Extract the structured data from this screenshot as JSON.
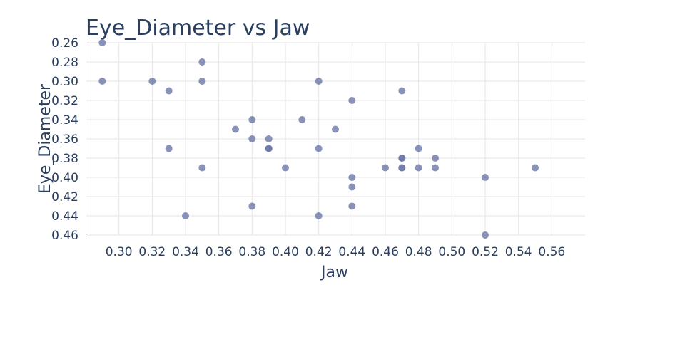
{
  "chart_data": {
    "type": "scatter",
    "title": "Eye_Diameter vs Jaw",
    "xlabel": "Jaw",
    "ylabel": "Eye_Diameter",
    "xlim": [
      0.28,
      0.58
    ],
    "ylim": [
      0.26,
      0.46
    ],
    "y_reversed": true,
    "grid": true,
    "legend": "none",
    "x_ticks": [
      "0.30",
      "0.32",
      "0.34",
      "0.36",
      "0.38",
      "0.40",
      "0.42",
      "0.44",
      "0.46",
      "0.48",
      "0.50",
      "0.52",
      "0.54",
      "0.56"
    ],
    "y_ticks": [
      "0.26",
      "0.28",
      "0.30",
      "0.32",
      "0.34",
      "0.36",
      "0.38",
      "0.40",
      "0.42",
      "0.44",
      "0.46"
    ],
    "marker_color": "#6b77a6",
    "marker_opacity": 0.8,
    "points": [
      {
        "x": 0.29,
        "y": 0.26
      },
      {
        "x": 0.29,
        "y": 0.3
      },
      {
        "x": 0.32,
        "y": 0.3
      },
      {
        "x": 0.33,
        "y": 0.31
      },
      {
        "x": 0.33,
        "y": 0.37
      },
      {
        "x": 0.34,
        "y": 0.44
      },
      {
        "x": 0.35,
        "y": 0.28
      },
      {
        "x": 0.35,
        "y": 0.3
      },
      {
        "x": 0.35,
        "y": 0.39
      },
      {
        "x": 0.37,
        "y": 0.35
      },
      {
        "x": 0.38,
        "y": 0.34
      },
      {
        "x": 0.38,
        "y": 0.36
      },
      {
        "x": 0.38,
        "y": 0.43
      },
      {
        "x": 0.39,
        "y": 0.36
      },
      {
        "x": 0.39,
        "y": 0.37
      },
      {
        "x": 0.39,
        "y": 0.37
      },
      {
        "x": 0.4,
        "y": 0.39
      },
      {
        "x": 0.41,
        "y": 0.34
      },
      {
        "x": 0.42,
        "y": 0.3
      },
      {
        "x": 0.42,
        "y": 0.37
      },
      {
        "x": 0.42,
        "y": 0.44
      },
      {
        "x": 0.43,
        "y": 0.35
      },
      {
        "x": 0.44,
        "y": 0.32
      },
      {
        "x": 0.44,
        "y": 0.4
      },
      {
        "x": 0.44,
        "y": 0.41
      },
      {
        "x": 0.44,
        "y": 0.43
      },
      {
        "x": 0.46,
        "y": 0.39
      },
      {
        "x": 0.47,
        "y": 0.31
      },
      {
        "x": 0.47,
        "y": 0.38
      },
      {
        "x": 0.47,
        "y": 0.38
      },
      {
        "x": 0.47,
        "y": 0.39
      },
      {
        "x": 0.47,
        "y": 0.39
      },
      {
        "x": 0.48,
        "y": 0.37
      },
      {
        "x": 0.48,
        "y": 0.39
      },
      {
        "x": 0.49,
        "y": 0.38
      },
      {
        "x": 0.49,
        "y": 0.39
      },
      {
        "x": 0.52,
        "y": 0.4
      },
      {
        "x": 0.52,
        "y": 0.46
      },
      {
        "x": 0.55,
        "y": 0.39
      }
    ]
  }
}
